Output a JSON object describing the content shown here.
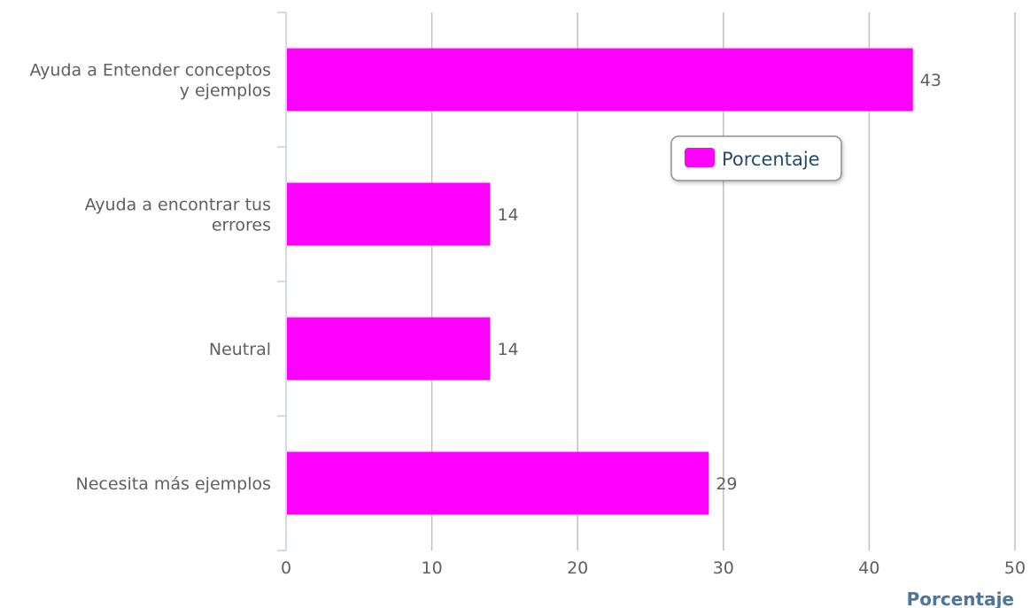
{
  "chart_data": {
    "type": "bar",
    "orientation": "horizontal",
    "categories": [
      [
        "Ayuda a Entender conceptos",
        "y ejemplos"
      ],
      [
        "Ayuda a encontrar tus",
        "errores"
      ],
      [
        "Neutral"
      ],
      [
        "Necesita más ejemplos"
      ]
    ],
    "series": [
      {
        "name": "Porcentaje",
        "color": "#ff00ff",
        "values": [
          43,
          14,
          14,
          29
        ]
      }
    ],
    "value_axis": {
      "title": "Porcentaje",
      "min": 0,
      "max": 50,
      "ticks": [
        0,
        10,
        20,
        30,
        40,
        50
      ]
    },
    "data_labels": true,
    "grid": true,
    "legend": {
      "position": "top-right-inside",
      "entries": [
        "Porcentaje"
      ]
    }
  }
}
